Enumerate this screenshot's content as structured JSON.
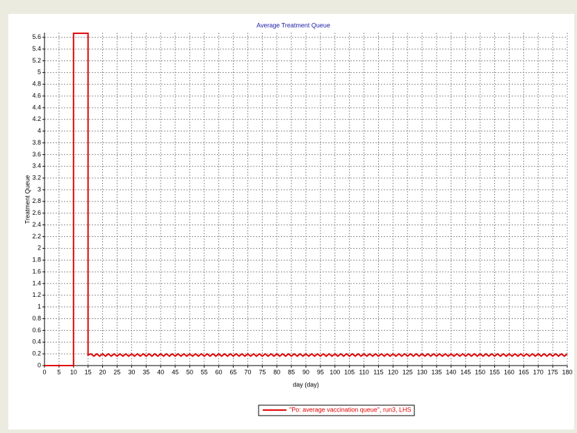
{
  "chart_data": {
    "type": "line",
    "title": "Average Treatment Queue",
    "xlabel": "day (day)",
    "ylabel": "Treatment Queue",
    "xlim": [
      0,
      180
    ],
    "ylim": [
      0,
      5.68
    ],
    "xticks": [
      0,
      5,
      10,
      15,
      20,
      25,
      30,
      35,
      40,
      45,
      50,
      55,
      60,
      65,
      70,
      75,
      80,
      85,
      90,
      95,
      100,
      105,
      110,
      115,
      120,
      125,
      130,
      135,
      140,
      145,
      150,
      155,
      160,
      165,
      170,
      175,
      180
    ],
    "yticks": [
      0,
      0.2,
      0.4,
      0.6,
      0.8,
      1,
      1.2,
      1.4,
      1.6,
      1.8,
      2,
      2.2,
      2.4,
      2.6,
      2.8,
      3,
      3.2,
      3.4,
      3.6,
      3.8,
      4,
      4.2,
      4.4,
      4.6,
      4.8,
      5,
      5.2,
      5.4,
      5.6
    ],
    "grid": true,
    "legend": "bottom",
    "series": [
      {
        "name": "\"Po: average vaccination queue\", run3, LHS",
        "color": "#e00000",
        "x": [
          0,
          10,
          10,
          15,
          15,
          16,
          17,
          18,
          19,
          20,
          21,
          22,
          23,
          24,
          25,
          26,
          27,
          28,
          29,
          30,
          31,
          32,
          33,
          34,
          35,
          36,
          37,
          38,
          39,
          40,
          41,
          42,
          43,
          44,
          45,
          46,
          47,
          48,
          49,
          50,
          51,
          52,
          53,
          54,
          55,
          56,
          57,
          58,
          59,
          60,
          61,
          62,
          63,
          64,
          65,
          66,
          67,
          68,
          69,
          70,
          71,
          72,
          73,
          74,
          75,
          76,
          77,
          78,
          79,
          80,
          81,
          82,
          83,
          84,
          85,
          86,
          87,
          88,
          89,
          90,
          91,
          92,
          93,
          94,
          95,
          96,
          97,
          98,
          99,
          100,
          101,
          102,
          103,
          104,
          105,
          106,
          107,
          108,
          109,
          110,
          111,
          112,
          113,
          114,
          115,
          116,
          117,
          118,
          119,
          120,
          121,
          122,
          123,
          124,
          125,
          126,
          127,
          128,
          129,
          130,
          131,
          132,
          133,
          134,
          135,
          136,
          137,
          138,
          139,
          140,
          141,
          142,
          143,
          144,
          145,
          146,
          147,
          148,
          149,
          150,
          151,
          152,
          153,
          154,
          155,
          156,
          157,
          158,
          159,
          160,
          161,
          162,
          163,
          164,
          165,
          166,
          167,
          168,
          169,
          170,
          171,
          172,
          173,
          174,
          175,
          176,
          177,
          178,
          179,
          180
        ],
        "values": [
          0,
          0,
          5.67,
          5.67,
          0.18,
          0.2,
          0.16,
          0.2,
          0.16,
          0.2,
          0.16,
          0.2,
          0.16,
          0.2,
          0.16,
          0.2,
          0.16,
          0.2,
          0.16,
          0.2,
          0.16,
          0.2,
          0.16,
          0.2,
          0.16,
          0.2,
          0.16,
          0.2,
          0.16,
          0.2,
          0.16,
          0.2,
          0.16,
          0.2,
          0.16,
          0.2,
          0.16,
          0.2,
          0.16,
          0.2,
          0.16,
          0.2,
          0.16,
          0.2,
          0.16,
          0.2,
          0.16,
          0.2,
          0.16,
          0.2,
          0.16,
          0.2,
          0.16,
          0.2,
          0.16,
          0.2,
          0.16,
          0.2,
          0.16,
          0.2,
          0.16,
          0.2,
          0.16,
          0.2,
          0.16,
          0.2,
          0.16,
          0.2,
          0.16,
          0.2,
          0.16,
          0.2,
          0.16,
          0.2,
          0.16,
          0.2,
          0.16,
          0.2,
          0.16,
          0.2,
          0.16,
          0.2,
          0.16,
          0.2,
          0.16,
          0.2,
          0.16,
          0.2,
          0.16,
          0.2,
          0.16,
          0.2,
          0.16,
          0.2,
          0.16,
          0.2,
          0.16,
          0.2,
          0.16,
          0.2,
          0.16,
          0.2,
          0.16,
          0.2,
          0.16,
          0.2,
          0.16,
          0.2,
          0.16,
          0.2,
          0.16,
          0.2,
          0.16,
          0.2,
          0.16,
          0.2,
          0.16,
          0.2,
          0.16,
          0.2,
          0.16,
          0.2,
          0.16,
          0.2,
          0.16,
          0.2,
          0.16,
          0.2,
          0.16,
          0.2,
          0.16,
          0.2,
          0.16,
          0.2,
          0.16,
          0.2,
          0.16,
          0.2,
          0.16,
          0.2,
          0.16,
          0.2,
          0.16,
          0.2,
          0.16,
          0.2,
          0.16,
          0.2,
          0.16,
          0.2,
          0.16,
          0.2,
          0.16,
          0.2,
          0.16,
          0.2,
          0.16,
          0.2,
          0.16,
          0.2,
          0.16,
          0.2,
          0.16,
          0.2,
          0.16,
          0.2,
          0.16,
          0.2,
          0.16,
          0.2
        ]
      }
    ]
  }
}
